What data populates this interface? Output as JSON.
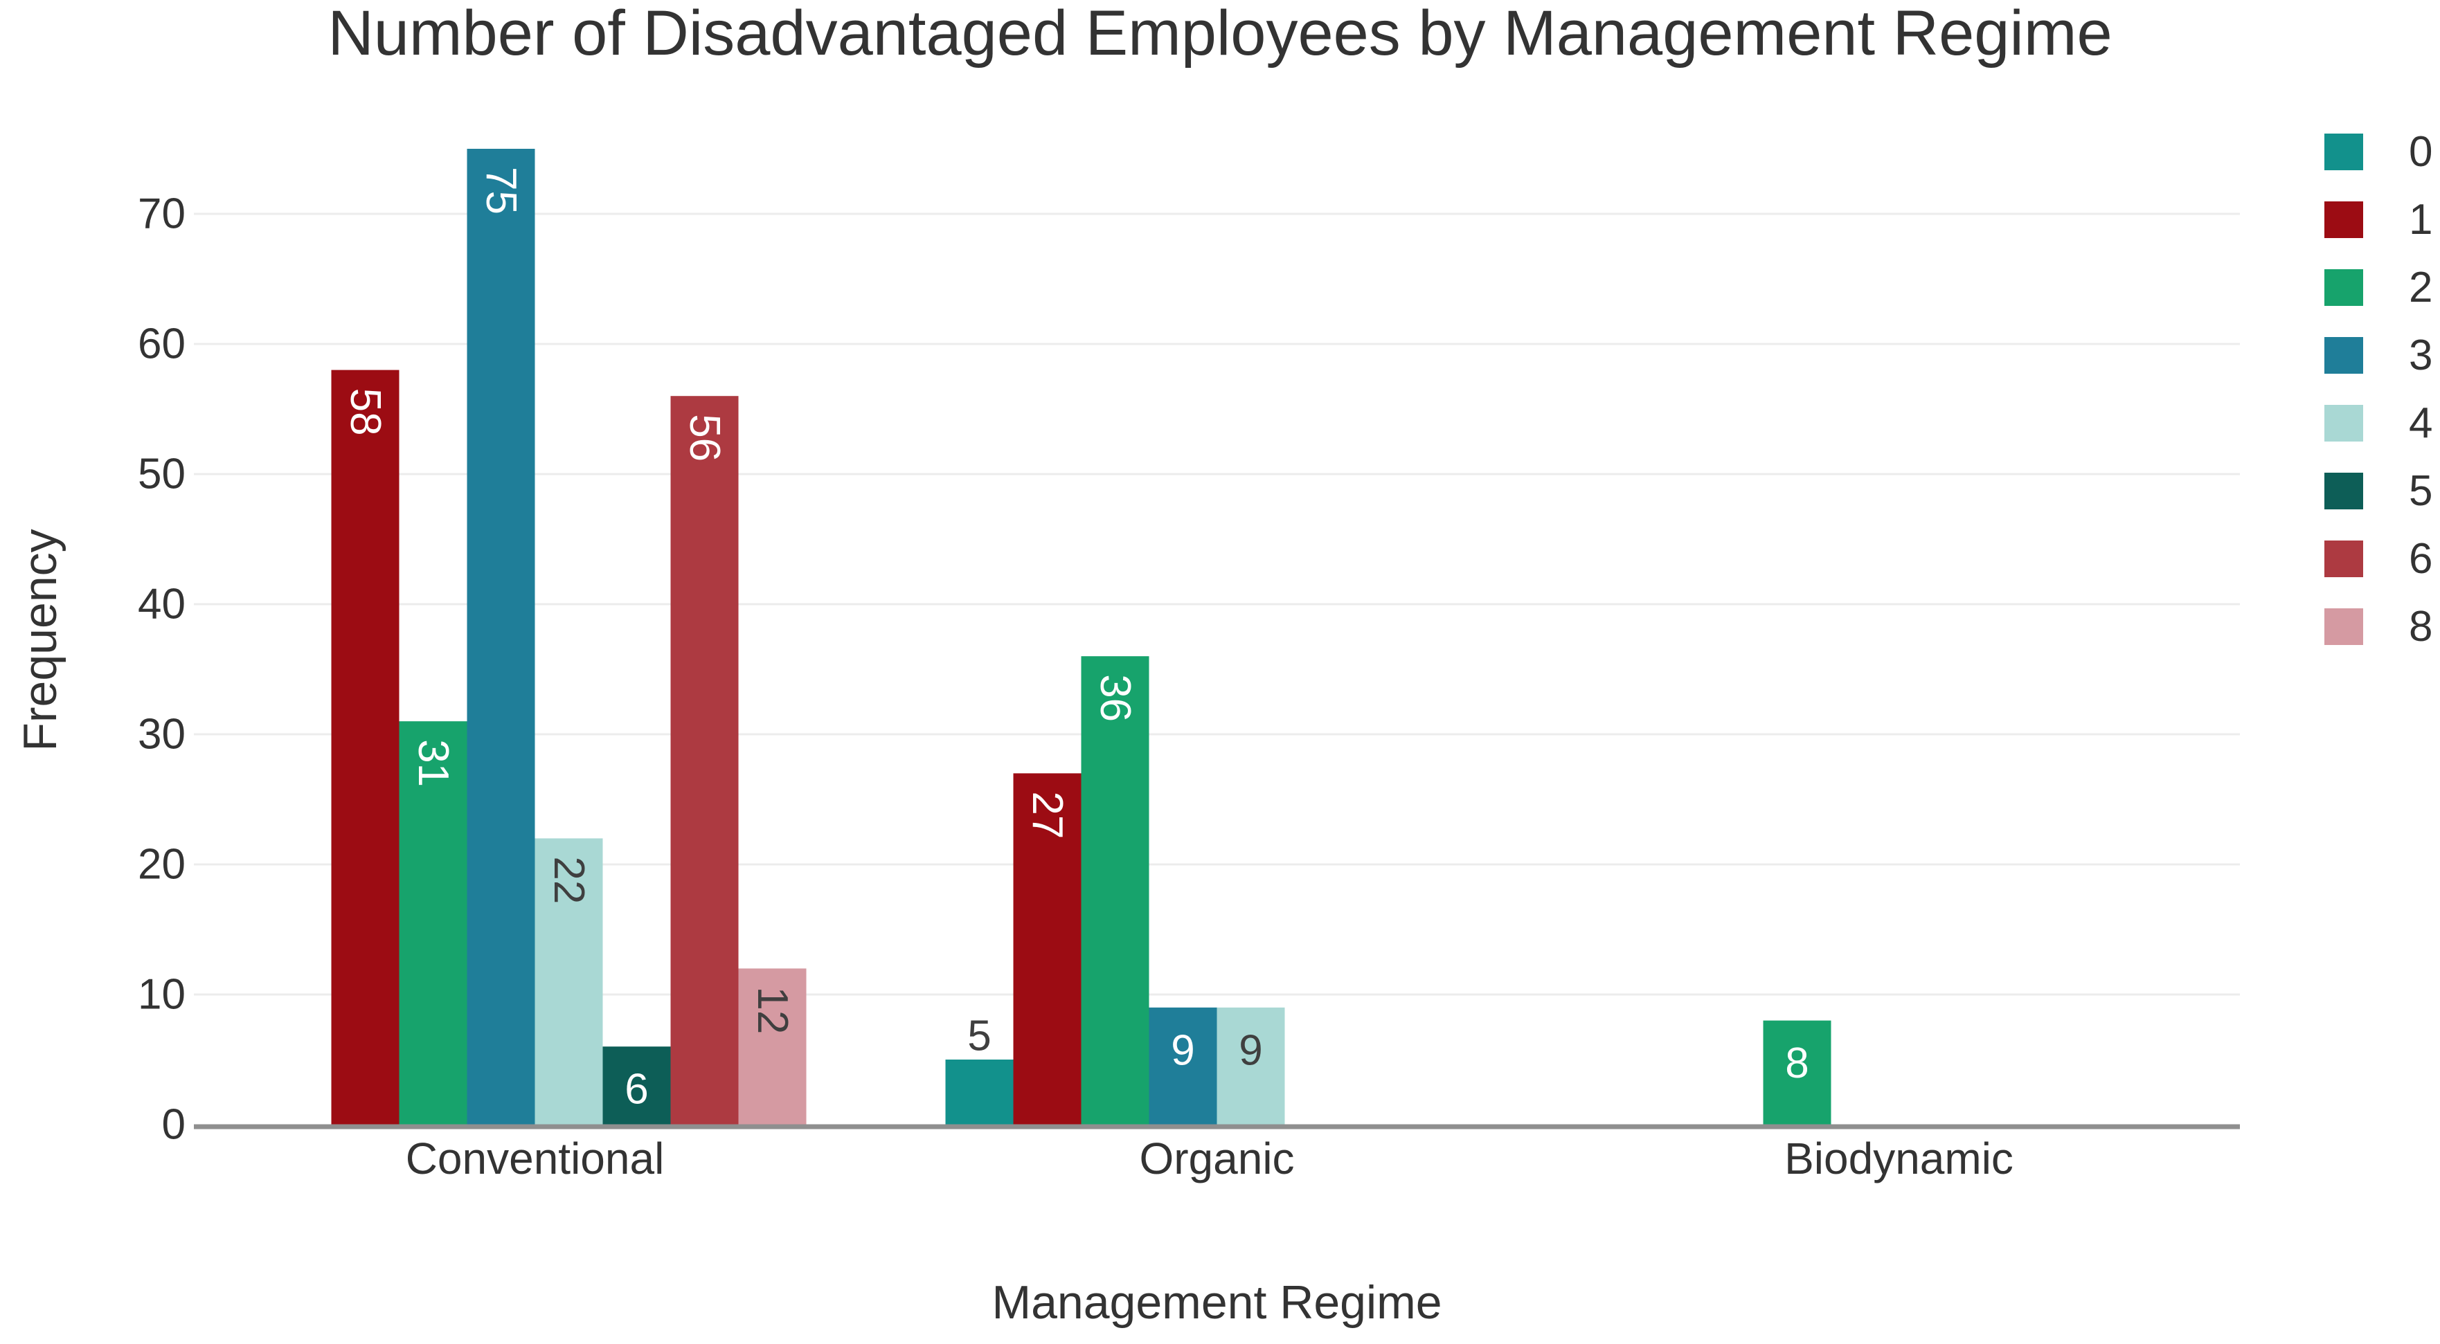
{
  "chart_data": {
    "type": "bar",
    "title": "Number of Disadvantaged Employees by Management Regime",
    "xlabel": "Management Regime",
    "ylabel": "Frequency",
    "categories": [
      "Conventional",
      "Organic",
      "Biodynamic"
    ],
    "series": [
      {
        "name": "0",
        "color": "#12918C",
        "values": [
          null,
          5,
          null
        ]
      },
      {
        "name": "1",
        "color": "#9C0C13",
        "values": [
          58,
          27,
          null
        ]
      },
      {
        "name": "2",
        "color": "#17A36C",
        "values": [
          31,
          36,
          8
        ]
      },
      {
        "name": "3",
        "color": "#1F7E99",
        "values": [
          75,
          9,
          null
        ]
      },
      {
        "name": "4",
        "color": "#A9D8D4",
        "values": [
          22,
          9,
          null
        ]
      },
      {
        "name": "5",
        "color": "#0D5E57",
        "values": [
          6,
          null,
          null
        ]
      },
      {
        "name": "6",
        "color": "#AD3A41",
        "values": [
          56,
          null,
          null
        ]
      },
      {
        "name": "8",
        "color": "#D59AA2",
        "values": [
          12,
          null,
          null
        ]
      }
    ],
    "yticks": [
      0,
      10,
      20,
      30,
      40,
      50,
      60,
      70
    ],
    "ylim": [
      0,
      77
    ],
    "grid": true,
    "legend_position": "right",
    "colors": {
      "axis_line": "#8F8F8F",
      "gridline": "#ECECEC",
      "text": "#333333",
      "bar_label_dark": "#3F3F3F",
      "bar_label_light": "#FFFFFF",
      "background": "#FFFFFF"
    }
  }
}
